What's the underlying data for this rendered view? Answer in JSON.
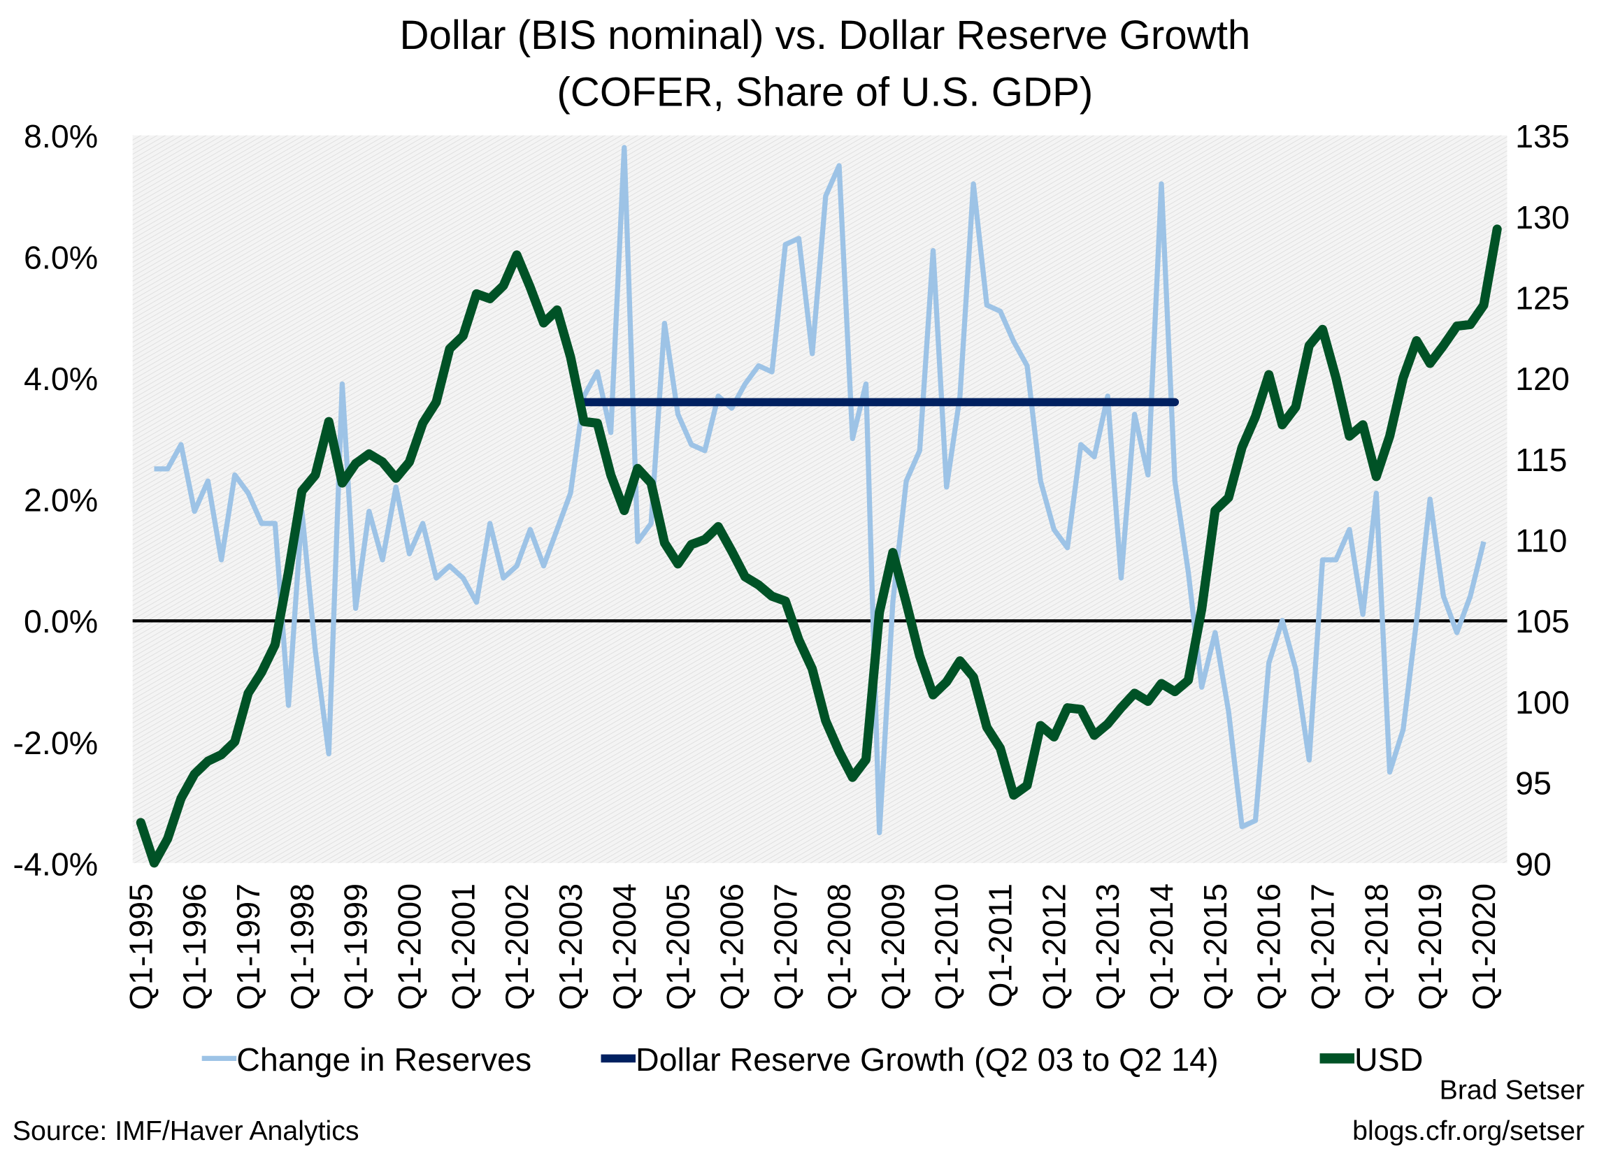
{
  "chart_data": {
    "type": "line",
    "title": "Dollar (BIS nominal) vs. Dollar Reserve Growth",
    "subtitle": "(COFER, Share of U.S. GDP)",
    "y_left": {
      "min": -4,
      "max": 8,
      "ticks": [
        "8.0%",
        "6.0%",
        "4.0%",
        "2.0%",
        "0.0%",
        "-2.0%",
        "-4.0%"
      ],
      "tick_values": [
        8,
        6,
        4,
        2,
        0,
        -2,
        -4
      ]
    },
    "y_right": {
      "min": 90,
      "max": 135,
      "ticks": [
        "135",
        "130",
        "125",
        "120",
        "115",
        "110",
        "105",
        "100",
        "95",
        "90"
      ],
      "tick_values": [
        135,
        130,
        125,
        120,
        115,
        110,
        105,
        100,
        95,
        90
      ]
    },
    "x_ticks": [
      "Q1-1995",
      "Q1-1996",
      "Q1-1997",
      "Q1-1998",
      "Q1-1999",
      "Q1-2000",
      "Q1-2001",
      "Q1-2002",
      "Q1-2003",
      "Q1-2004",
      "Q1-2005",
      "Q1-2006",
      "Q1-2007",
      "Q1-2008",
      "Q1-2009",
      "Q1-2010",
      "Q1-2011",
      "Q1-2012",
      "Q1-2013",
      "Q1-2014",
      "Q1-2015",
      "Q1-2016",
      "Q1-2017",
      "Q1-2018",
      "Q1-2019",
      "Q1-2020"
    ],
    "grid": false,
    "legend_placement": "bottom",
    "series": [
      {
        "name": "Change in Reserves",
        "axis": "left",
        "unit": "%",
        "color": "#9dc3e6",
        "start": "Q2-1995",
        "end": "Q1-2020",
        "values": [
          2.5,
          2.5,
          2.9,
          1.8,
          2.3,
          1.0,
          2.4,
          2.1,
          1.6,
          1.6,
          -1.4,
          1.8,
          -0.5,
          -2.2,
          3.9,
          0.2,
          1.8,
          1.0,
          2.2,
          1.1,
          1.6,
          0.7,
          0.9,
          0.7,
          0.3,
          1.6,
          0.7,
          0.9,
          1.5,
          0.9,
          1.5,
          2.1,
          3.7,
          4.1,
          3.1,
          7.8,
          1.3,
          1.6,
          4.9,
          3.4,
          2.9,
          2.8,
          3.7,
          3.5,
          3.9,
          4.2,
          4.1,
          6.2,
          6.3,
          4.4,
          7.0,
          7.5,
          3.0,
          3.9,
          -3.5,
          0.3,
          2.3,
          2.8,
          6.1,
          2.2,
          3.7,
          7.2,
          5.2,
          5.1,
          4.6,
          4.2,
          2.3,
          1.5,
          1.2,
          2.9,
          2.7,
          3.7,
          0.7,
          3.4,
          2.4,
          7.2,
          2.3,
          0.8,
          -1.1,
          -0.2,
          -1.5,
          -3.4,
          -3.3,
          -0.7,
          0.0,
          -0.8,
          -2.3,
          1.0,
          1.0,
          1.5,
          0.1,
          2.1,
          -2.5,
          -1.8,
          0.0,
          2.0,
          0.4,
          -0.2,
          0.4,
          1.3
        ]
      },
      {
        "name": "Dollar Reserve Growth (Q2 03 to Q2 14)",
        "axis": "left",
        "unit": "%",
        "color": "#002060",
        "start": "Q2-2003",
        "end": "Q2-2014",
        "value": 3.6
      },
      {
        "name": "USD",
        "axis": "right",
        "color": "#005226",
        "start": "Q1-1995",
        "end": "Q2-2020",
        "values": [
          92.5,
          90,
          91.5,
          94,
          95.5,
          96.3,
          96.7,
          97.5,
          100.5,
          101.8,
          103.5,
          108,
          113,
          114,
          117.3,
          113.5,
          114.7,
          115.3,
          114.8,
          113.8,
          114.8,
          117.2,
          118.5,
          121.8,
          122.6,
          125.2,
          124.9,
          125.7,
          127.6,
          125.6,
          123.4,
          124.2,
          121.3,
          117.3,
          117.2,
          114,
          111.8,
          114.4,
          113.5,
          109.8,
          108.5,
          109.7,
          110,
          110.8,
          109.3,
          107.7,
          107.2,
          106.5,
          106.2,
          103.8,
          102,
          98.8,
          96.9,
          95.3,
          96.4,
          105.5,
          109.2,
          106.1,
          102.8,
          100.4,
          101.2,
          102.5,
          101.5,
          98.4,
          97.1,
          94.2,
          94.8,
          98.5,
          97.8,
          99.6,
          99.5,
          97.9,
          98.6,
          99.6,
          100.5,
          100,
          101.1,
          100.6,
          101.3,
          105.7,
          111.8,
          112.6,
          115.7,
          117.6,
          120.2,
          117.1,
          118.2,
          122,
          123,
          120,
          116.4,
          117.1,
          113.9,
          116.4,
          120,
          122.3,
          120.9,
          122,
          123.2,
          123.3,
          124.5,
          129.2
        ]
      }
    ]
  },
  "footer": {
    "source": "Source: IMF/Haver Analytics",
    "author": "Brad Setser",
    "site": "blogs.cfr.org/setser"
  }
}
